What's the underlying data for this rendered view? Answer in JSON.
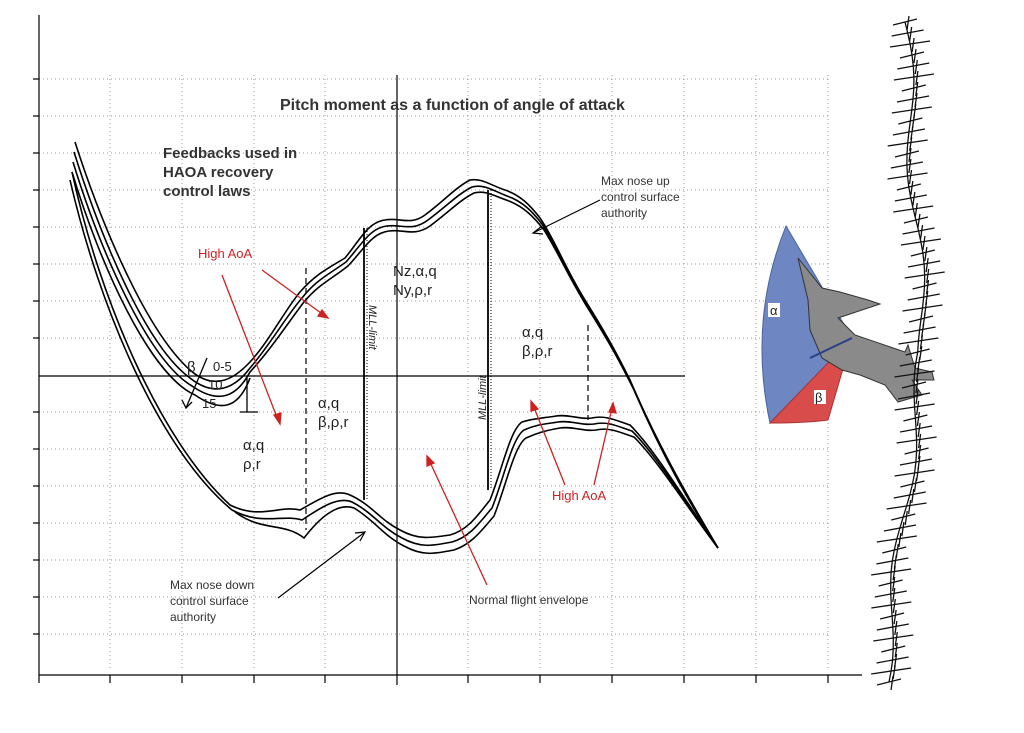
{
  "title": "Pitch moment as a function of angle of attack",
  "feedbacks_label": [
    "Feedbacks used in",
    "HAOA recovery",
    "control laws"
  ],
  "max_nose_up": [
    "Max nose up",
    "control surface",
    "authority"
  ],
  "max_nose_down": [
    "Max nose down",
    "control surface",
    "authority"
  ],
  "normal_envelope": "Normal flight envelope",
  "high_aoa_left": "High AoA",
  "high_aoa_right": "High AoA",
  "mll_limit_left": "MLL-limit",
  "mll_limit_right": "MLL-limit",
  "beta_label": "β",
  "beta_values": [
    "0-5",
    "10",
    "15"
  ],
  "region_left": [
    "α,q",
    "ρ,r"
  ],
  "region_mid_left": [
    "α,q",
    "β,ρ,r"
  ],
  "region_center": [
    "Nz,α,q",
    "Ny,ρ,r"
  ],
  "region_right": [
    "α,q",
    "β,ρ,r"
  ],
  "aircraft_alpha": "α",
  "aircraft_beta": "β",
  "colors": {
    "alpha_sector": "#6e87c2",
    "beta_sector": "#d94c4c",
    "arrow_red": "#cc2222",
    "aircraft": "#8a8a8a"
  }
}
